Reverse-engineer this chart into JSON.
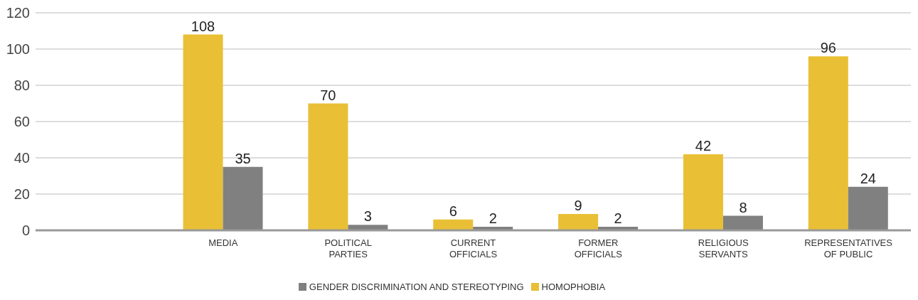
{
  "chart_data": {
    "type": "bar",
    "categories": [
      null,
      "MEDIA",
      "POLITICAL PARTIES",
      "CURRENT OFFICIALS",
      "FORMER OFFICIALS",
      "RELIGIOUS SERVANTS",
      "REPRESENTATIVES OF PUBLIC"
    ],
    "series": [
      {
        "name": "HOMOPHOBIA",
        "color": "#e9bf35",
        "values": [
          null,
          108,
          70,
          6,
          9,
          42,
          96
        ]
      },
      {
        "name": "GENDER DISCRIMINATION AND STEREOTYPING",
        "color": "#808080",
        "values": [
          null,
          35,
          3,
          2,
          2,
          8,
          24
        ]
      }
    ],
    "ylim": [
      0,
      120
    ],
    "yticks": [
      0,
      20,
      40,
      60,
      80,
      100,
      120
    ],
    "grid": "y",
    "legend": "bottom",
    "data_labels": true
  }
}
